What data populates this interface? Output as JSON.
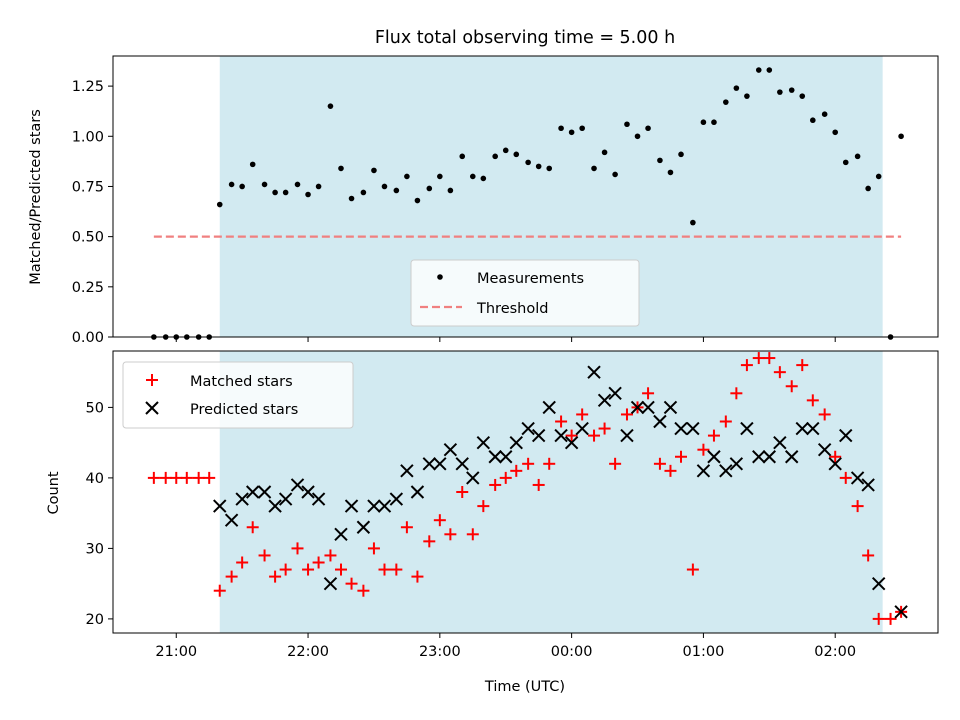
{
  "chart_data": [
    {
      "type": "scatter",
      "title": "Flux total observing time = 5.00 h",
      "ylabel": "Matched/Predicted stars",
      "xlabel": "",
      "ylim": [
        0,
        1.4
      ],
      "y_ticks": [
        "0.00",
        "0.25",
        "0.50",
        "0.75",
        "1.00",
        "1.25"
      ],
      "y_tick_values": [
        0,
        0.25,
        0.5,
        0.75,
        1.0,
        1.25
      ],
      "x_unit": "hours since 21:00 UTC",
      "xlim": [
        -0.48,
        5.78
      ],
      "shaded_region": {
        "start": 0.33,
        "end": 5.36,
        "color": "#add8e6"
      },
      "threshold": {
        "name": "Threshold",
        "value": 0.5,
        "start": -0.17,
        "end": 5.5,
        "color": "#f08080"
      },
      "legend_position": "lower-center",
      "series": [
        {
          "name": "Measurements",
          "color": "#000000",
          "marker": "dot",
          "points": [
            [
              -0.17,
              0.0
            ],
            [
              -0.08,
              0.0
            ],
            [
              0.0,
              0.0
            ],
            [
              0.08,
              0.0
            ],
            [
              0.17,
              0.0
            ],
            [
              0.25,
              0.0
            ],
            [
              0.33,
              0.66
            ],
            [
              0.42,
              0.76
            ],
            [
              0.5,
              0.75
            ],
            [
              0.58,
              0.86
            ],
            [
              0.67,
              0.76
            ],
            [
              0.75,
              0.72
            ],
            [
              0.83,
              0.72
            ],
            [
              0.92,
              0.76
            ],
            [
              1.0,
              0.71
            ],
            [
              1.08,
              0.75
            ],
            [
              1.17,
              1.15
            ],
            [
              1.25,
              0.84
            ],
            [
              1.33,
              0.69
            ],
            [
              1.42,
              0.72
            ],
            [
              1.5,
              0.83
            ],
            [
              1.58,
              0.75
            ],
            [
              1.67,
              0.73
            ],
            [
              1.75,
              0.8
            ],
            [
              1.83,
              0.68
            ],
            [
              1.92,
              0.74
            ],
            [
              2.0,
              0.8
            ],
            [
              2.08,
              0.73
            ],
            [
              2.17,
              0.9
            ],
            [
              2.25,
              0.8
            ],
            [
              2.33,
              0.79
            ],
            [
              2.42,
              0.9
            ],
            [
              2.5,
              0.93
            ],
            [
              2.58,
              0.91
            ],
            [
              2.67,
              0.87
            ],
            [
              2.75,
              0.85
            ],
            [
              2.83,
              0.84
            ],
            [
              2.92,
              1.04
            ],
            [
              3.0,
              1.02
            ],
            [
              3.08,
              1.04
            ],
            [
              3.17,
              0.84
            ],
            [
              3.25,
              0.92
            ],
            [
              3.33,
              0.81
            ],
            [
              3.42,
              1.06
            ],
            [
              3.5,
              1.0
            ],
            [
              3.58,
              1.04
            ],
            [
              3.67,
              0.88
            ],
            [
              3.75,
              0.82
            ],
            [
              3.83,
              0.91
            ],
            [
              3.92,
              0.57
            ],
            [
              4.0,
              1.07
            ],
            [
              4.08,
              1.07
            ],
            [
              4.17,
              1.17
            ],
            [
              4.25,
              1.24
            ],
            [
              4.33,
              1.2
            ],
            [
              4.42,
              1.33
            ],
            [
              4.5,
              1.33
            ],
            [
              4.58,
              1.22
            ],
            [
              4.67,
              1.23
            ],
            [
              4.75,
              1.2
            ],
            [
              4.83,
              1.08
            ],
            [
              4.92,
              1.11
            ],
            [
              5.0,
              1.02
            ],
            [
              5.08,
              0.87
            ],
            [
              5.17,
              0.9
            ],
            [
              5.25,
              0.74
            ],
            [
              5.33,
              0.8
            ],
            [
              5.42,
              0.0
            ],
            [
              5.5,
              1.0
            ]
          ]
        }
      ]
    },
    {
      "type": "scatter",
      "title": "",
      "xlabel": "Time (UTC)",
      "ylabel": "Count",
      "ylim": [
        18,
        58
      ],
      "y_ticks": [
        "20",
        "30",
        "40",
        "50"
      ],
      "y_tick_values": [
        20,
        30,
        40,
        50
      ],
      "x_ticks": [
        "21:00",
        "22:00",
        "23:00",
        "00:00",
        "01:00",
        "02:00"
      ],
      "x_tick_values": [
        0,
        1,
        2,
        3,
        4,
        5
      ],
      "x_unit": "hours since 21:00 UTC",
      "xlim": [
        -0.48,
        5.78
      ],
      "shaded_region": {
        "start": 0.33,
        "end": 5.36,
        "color": "#add8e6"
      },
      "legend_position": "upper-left",
      "series": [
        {
          "name": "Matched stars",
          "color": "#ff0000",
          "marker": "plus",
          "points": [
            [
              -0.17,
              40
            ],
            [
              -0.08,
              40
            ],
            [
              0.0,
              40
            ],
            [
              0.08,
              40
            ],
            [
              0.17,
              40
            ],
            [
              0.25,
              40
            ],
            [
              0.33,
              24
            ],
            [
              0.42,
              26
            ],
            [
              0.5,
              28
            ],
            [
              0.58,
              33
            ],
            [
              0.67,
              29
            ],
            [
              0.75,
              26
            ],
            [
              0.83,
              27
            ],
            [
              0.92,
              30
            ],
            [
              1.0,
              27
            ],
            [
              1.08,
              28
            ],
            [
              1.17,
              29
            ],
            [
              1.25,
              27
            ],
            [
              1.33,
              25
            ],
            [
              1.42,
              24
            ],
            [
              1.5,
              30
            ],
            [
              1.58,
              27
            ],
            [
              1.67,
              27
            ],
            [
              1.75,
              33
            ],
            [
              1.83,
              26
            ],
            [
              1.92,
              31
            ],
            [
              2.0,
              34
            ],
            [
              2.08,
              32
            ],
            [
              2.17,
              38
            ],
            [
              2.25,
              32
            ],
            [
              2.33,
              36
            ],
            [
              2.42,
              39
            ],
            [
              2.5,
              40
            ],
            [
              2.58,
              41
            ],
            [
              2.67,
              42
            ],
            [
              2.75,
              39
            ],
            [
              2.83,
              42
            ],
            [
              2.92,
              48
            ],
            [
              3.0,
              46
            ],
            [
              3.08,
              49
            ],
            [
              3.17,
              46
            ],
            [
              3.25,
              47
            ],
            [
              3.33,
              42
            ],
            [
              3.42,
              49
            ],
            [
              3.5,
              50
            ],
            [
              3.58,
              52
            ],
            [
              3.67,
              42
            ],
            [
              3.75,
              41
            ],
            [
              3.83,
              43
            ],
            [
              3.92,
              27
            ],
            [
              4.0,
              44
            ],
            [
              4.08,
              46
            ],
            [
              4.17,
              48
            ],
            [
              4.25,
              52
            ],
            [
              4.33,
              56
            ],
            [
              4.42,
              57
            ],
            [
              4.5,
              57
            ],
            [
              4.58,
              55
            ],
            [
              4.67,
              53
            ],
            [
              4.75,
              56
            ],
            [
              4.83,
              51
            ],
            [
              4.92,
              49
            ],
            [
              5.0,
              43
            ],
            [
              5.08,
              40
            ],
            [
              5.17,
              36
            ],
            [
              5.25,
              29
            ],
            [
              5.33,
              20
            ],
            [
              5.42,
              20
            ],
            [
              5.5,
              21
            ]
          ]
        },
        {
          "name": "Predicted stars",
          "color": "#000000",
          "marker": "x",
          "points": [
            [
              0.33,
              36
            ],
            [
              0.42,
              34
            ],
            [
              0.5,
              37
            ],
            [
              0.58,
              38
            ],
            [
              0.67,
              38
            ],
            [
              0.75,
              36
            ],
            [
              0.83,
              37
            ],
            [
              0.92,
              39
            ],
            [
              1.0,
              38
            ],
            [
              1.08,
              37
            ],
            [
              1.17,
              25
            ],
            [
              1.25,
              32
            ],
            [
              1.33,
              36
            ],
            [
              1.42,
              33
            ],
            [
              1.5,
              36
            ],
            [
              1.58,
              36
            ],
            [
              1.67,
              37
            ],
            [
              1.75,
              41
            ],
            [
              1.83,
              38
            ],
            [
              1.92,
              42
            ],
            [
              2.0,
              42
            ],
            [
              2.08,
              44
            ],
            [
              2.17,
              42
            ],
            [
              2.25,
              40
            ],
            [
              2.33,
              45
            ],
            [
              2.42,
              43
            ],
            [
              2.5,
              43
            ],
            [
              2.58,
              45
            ],
            [
              2.67,
              47
            ],
            [
              2.75,
              46
            ],
            [
              2.83,
              50
            ],
            [
              2.92,
              46
            ],
            [
              3.0,
              45
            ],
            [
              3.08,
              47
            ],
            [
              3.17,
              55
            ],
            [
              3.25,
              51
            ],
            [
              3.33,
              52
            ],
            [
              3.42,
              46
            ],
            [
              3.5,
              50
            ],
            [
              3.58,
              50
            ],
            [
              3.67,
              48
            ],
            [
              3.75,
              50
            ],
            [
              3.83,
              47
            ],
            [
              3.92,
              47
            ],
            [
              4.0,
              41
            ],
            [
              4.08,
              43
            ],
            [
              4.17,
              41
            ],
            [
              4.25,
              42
            ],
            [
              4.33,
              47
            ],
            [
              4.42,
              43
            ],
            [
              4.5,
              43
            ],
            [
              4.58,
              45
            ],
            [
              4.67,
              43
            ],
            [
              4.75,
              47
            ],
            [
              4.83,
              47
            ],
            [
              4.92,
              44
            ],
            [
              5.0,
              42
            ],
            [
              5.08,
              46
            ],
            [
              5.17,
              40
            ],
            [
              5.25,
              39
            ],
            [
              5.33,
              25
            ],
            [
              5.5,
              21
            ]
          ]
        }
      ]
    }
  ]
}
